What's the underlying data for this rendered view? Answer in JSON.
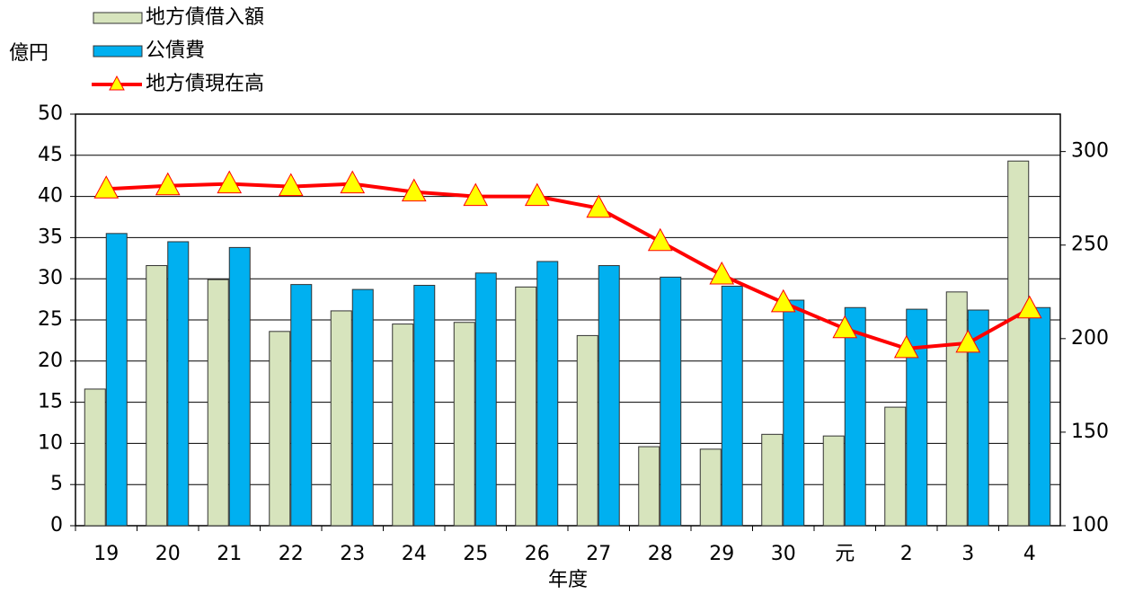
{
  "chart_data": {
    "type": "bar",
    "y_label": "億円",
    "x_label": "年度",
    "categories": [
      "19",
      "20",
      "21",
      "22",
      "23",
      "24",
      "25",
      "26",
      "27",
      "28",
      "29",
      "30",
      "元",
      "2",
      "3",
      "4"
    ],
    "series": [
      {
        "name": "地方債借入額",
        "color": "#d7e4bd",
        "values": [
          16.6,
          31.6,
          29.9,
          23.6,
          26.1,
          24.5,
          24.7,
          29.0,
          23.1,
          9.6,
          9.3,
          11.1,
          10.9,
          14.4,
          28.4,
          44.3
        ]
      },
      {
        "name": "公債費",
        "color": "#00b0f0",
        "values": [
          35.5,
          34.5,
          33.8,
          29.3,
          28.7,
          29.2,
          30.7,
          32.1,
          31.6,
          30.2,
          29.1,
          27.4,
          26.5,
          26.3,
          26.2,
          26.5
        ]
      },
      {
        "name": "地方債現在高",
        "color": "#ff0000",
        "type": "line",
        "axis": "y2",
        "marker_color": "#ffff00",
        "values": [
          280,
          281.7,
          282.7,
          281.3,
          282.7,
          278.4,
          276,
          276,
          269.7,
          251.9,
          234,
          219.2,
          205.3,
          194.7,
          197.6,
          215.9
        ]
      }
    ],
    "ylim": [
      0,
      50
    ],
    "yticks": [
      0,
      5,
      10,
      15,
      20,
      25,
      30,
      35,
      40,
      45,
      50
    ],
    "y2lim": [
      100,
      320
    ],
    "y2ticks": [
      100,
      150,
      200,
      250,
      300
    ],
    "grid": true,
    "legend": "top-left"
  }
}
